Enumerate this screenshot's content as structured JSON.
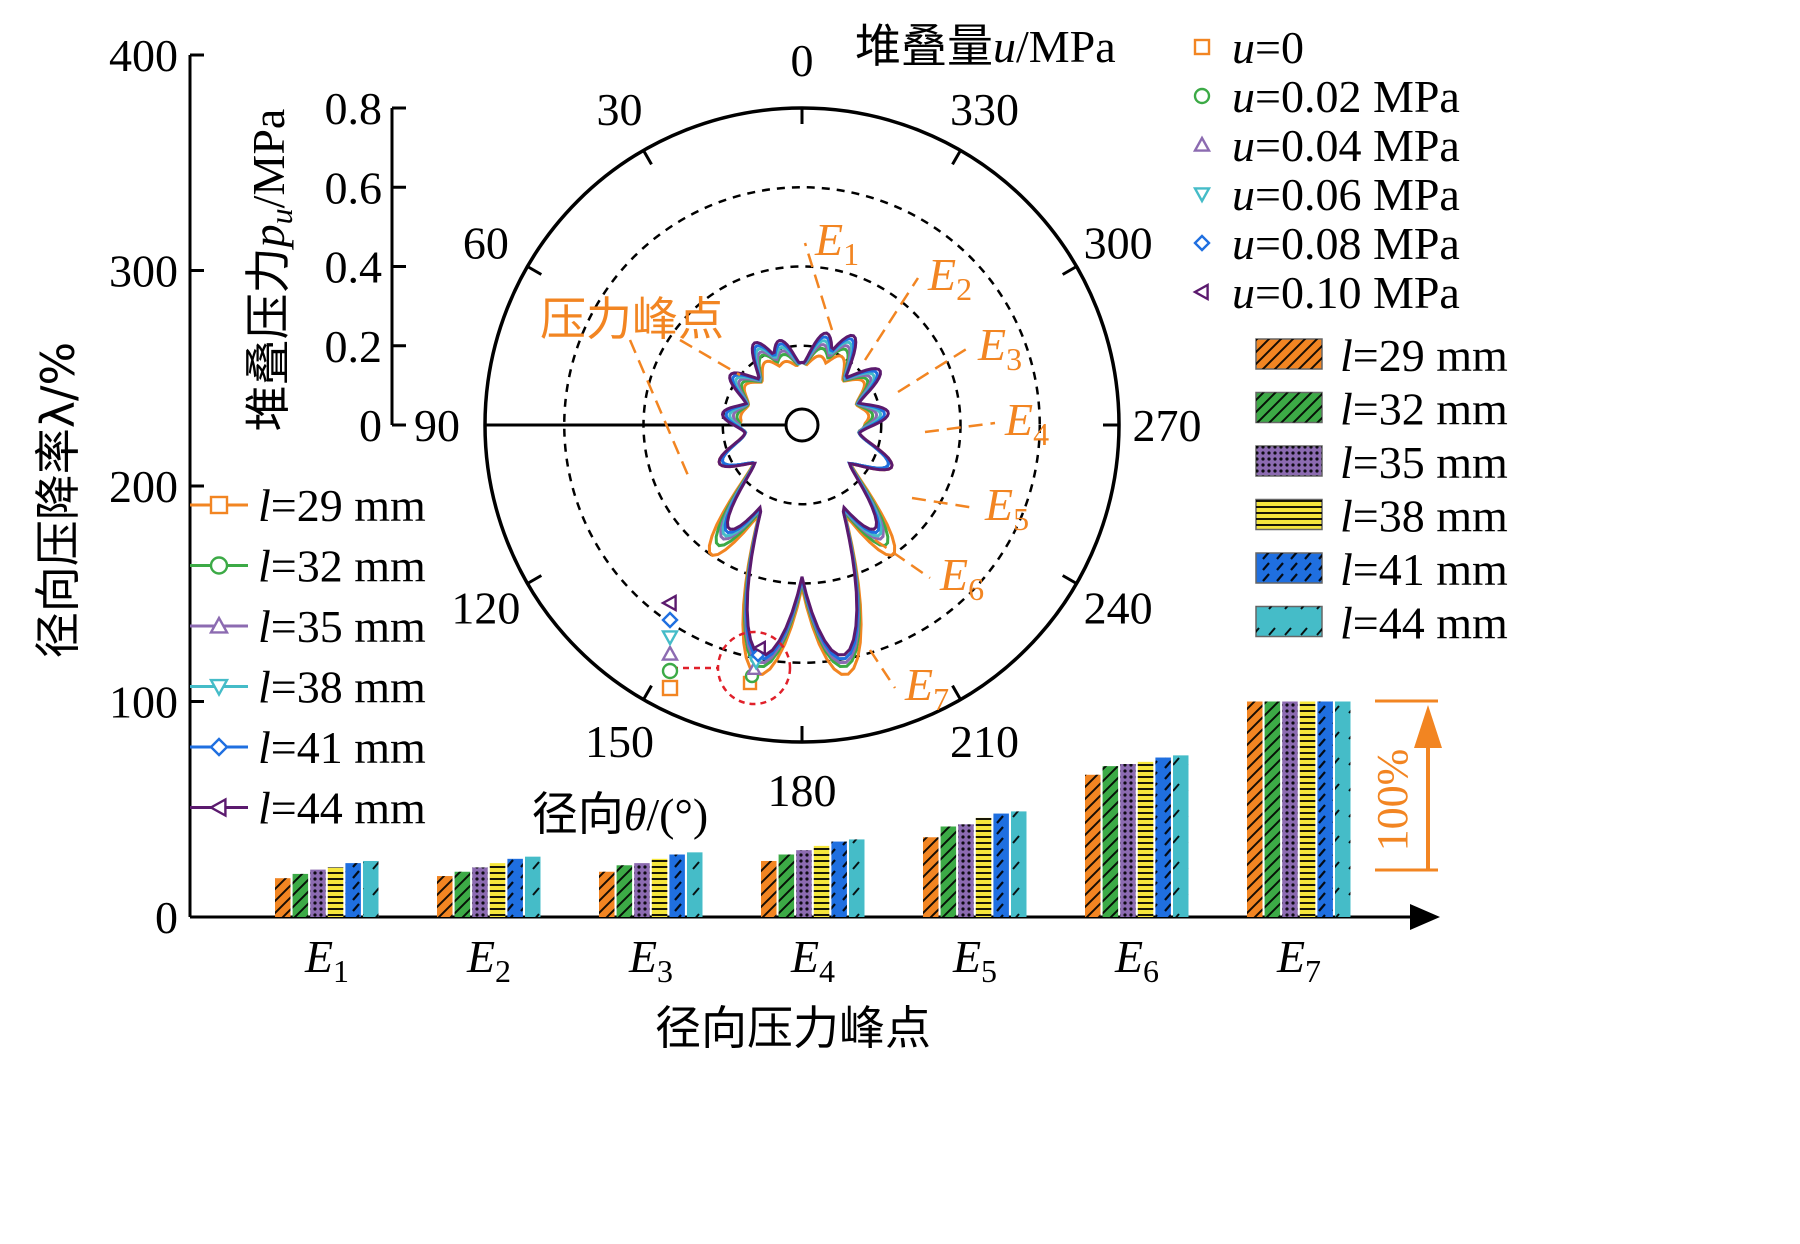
{
  "chart_data": [
    {
      "type": "bar",
      "xlabel": "径向压力峰点",
      "ylabel": "径向压降率λ/%",
      "ylim": [
        0,
        400
      ],
      "yticks": [
        "0",
        "100",
        "200",
        "300",
        "400"
      ],
      "categories": [
        "E1",
        "E2",
        "E3",
        "E4",
        "E5",
        "E6",
        "E7"
      ],
      "category_labels": [
        {
          "main": "E",
          "sub": "1"
        },
        {
          "main": "E",
          "sub": "2"
        },
        {
          "main": "E",
          "sub": "3"
        },
        {
          "main": "E",
          "sub": "4"
        },
        {
          "main": "E",
          "sub": "5"
        },
        {
          "main": "E",
          "sub": "6"
        },
        {
          "main": "E",
          "sub": "7"
        }
      ],
      "series": [
        {
          "name": "l=29 mm",
          "var": "l",
          "rest": "=29 mm",
          "color": "#F28522",
          "values": [
            18,
            19,
            21,
            26,
            37,
            66,
            100
          ]
        },
        {
          "name": "l=32 mm",
          "var": "l",
          "rest": "=32 mm",
          "color": "#3CAA46",
          "values": [
            20,
            21,
            24,
            29,
            42,
            70,
            100
          ]
        },
        {
          "name": "l=35 mm",
          "var": "l",
          "rest": "=35 mm",
          "color": "#8C6BB1",
          "values": [
            22,
            23,
            25,
            31,
            43,
            71,
            100
          ]
        },
        {
          "name": "l=38 mm",
          "var": "l",
          "rest": "=38 mm",
          "color": "#F5E63C",
          "values": [
            23,
            25,
            27,
            33,
            46,
            72,
            100
          ]
        },
        {
          "name": "l=41 mm",
          "var": "l",
          "rest": "=41 mm",
          "color": "#1F6FE0",
          "values": [
            25,
            27,
            29,
            35,
            48,
            74,
            100
          ]
        },
        {
          "name": "l=44 mm",
          "var": "l",
          "rest": "=44 mm",
          "color": "#45BCC8",
          "values": [
            26,
            28,
            30,
            36,
            49,
            75,
            100
          ]
        }
      ],
      "annotation": "100%",
      "legend_placement": "right"
    },
    {
      "type": "polar-line",
      "radial_label": {
        "pre": "堆叠压力",
        "var": "p",
        "sub": "u",
        "post": "/MPa"
      },
      "angular_label": {
        "pre": "径向",
        "var": "θ",
        "post": "/(°)"
      },
      "rlim": [
        0,
        0.8
      ],
      "rticks": [
        "0",
        "0.2",
        "0.4",
        "0.6",
        "0.8"
      ],
      "angle_ticks": [
        "0",
        "30",
        "60",
        "90",
        "120",
        "150",
        "180",
        "210",
        "240",
        "270",
        "300",
        "330"
      ],
      "peak_label": "压力峰点",
      "peaks": [
        {
          "main": "E",
          "sub": "1"
        },
        {
          "main": "E",
          "sub": "2"
        },
        {
          "main": "E",
          "sub": "3"
        },
        {
          "main": "E",
          "sub": "4"
        },
        {
          "main": "E",
          "sub": "5"
        },
        {
          "main": "E",
          "sub": "6"
        },
        {
          "main": "E",
          "sub": "7"
        }
      ],
      "series": [
        {
          "name": "l=29 mm",
          "var": "l",
          "rest": "=29 mm",
          "color": "#F28522",
          "marker": "square",
          "peaks": [
            0.18,
            0.2,
            0.19,
            0.17,
            0.25,
            0.4,
            0.64
          ]
        },
        {
          "name": "l=32 mm",
          "var": "l",
          "rest": "=32 mm",
          "color": "#3CAA46",
          "marker": "circle",
          "peaks": [
            0.2,
            0.22,
            0.2,
            0.18,
            0.24,
            0.37,
            0.62
          ]
        },
        {
          "name": "l=35 mm",
          "var": "l",
          "rest": "=35 mm",
          "color": "#8C6BB1",
          "marker": "triangle-up",
          "peaks": [
            0.21,
            0.23,
            0.21,
            0.19,
            0.24,
            0.35,
            0.61
          ]
        },
        {
          "name": "l=38 mm",
          "var": "l",
          "rest": "=38 mm",
          "color": "#45BCC8",
          "marker": "triangle-down",
          "peaks": [
            0.22,
            0.24,
            0.22,
            0.2,
            0.24,
            0.34,
            0.6
          ]
        },
        {
          "name": "l=41 mm",
          "var": "l",
          "rest": "=41 mm",
          "color": "#1F6FE0",
          "marker": "diamond",
          "peaks": [
            0.23,
            0.25,
            0.23,
            0.21,
            0.24,
            0.33,
            0.6
          ]
        },
        {
          "name": "l=44 mm",
          "var": "l",
          "rest": "=44 mm",
          "color": "#5B1A6E",
          "marker": "triangle-left",
          "peaks": [
            0.24,
            0.26,
            0.24,
            0.22,
            0.25,
            0.32,
            0.59
          ]
        }
      ],
      "stack_legend": {
        "title": {
          "pre": "堆叠量",
          "var": "u",
          "post": "/MPa"
        },
        "items": [
          {
            "var": "u",
            "rest": "=0",
            "color": "#F28522",
            "marker": "square",
            "peak_E7": 0.66
          },
          {
            "var": "u",
            "rest": "=0.02 MPa",
            "color": "#3CAA46",
            "marker": "circle",
            "peak_E7": 0.64
          },
          {
            "var": "u",
            "rest": "=0.04 MPa",
            "color": "#8C6BB1",
            "marker": "triangle-up",
            "peak_E7": 0.62
          },
          {
            "var": "u",
            "rest": "=0.06 MPa",
            "color": "#45BCC8",
            "marker": "triangle-down",
            "peak_E7": 0.6
          },
          {
            "var": "u",
            "rest": "=0.08 MPa",
            "color": "#1F6FE0",
            "marker": "diamond",
            "peak_E7": 0.58
          },
          {
            "var": "u",
            "rest": "=0.10 MPa",
            "color": "#5B1A6E",
            "marker": "triangle-left",
            "peak_E7": 0.56
          }
        ]
      }
    }
  ]
}
